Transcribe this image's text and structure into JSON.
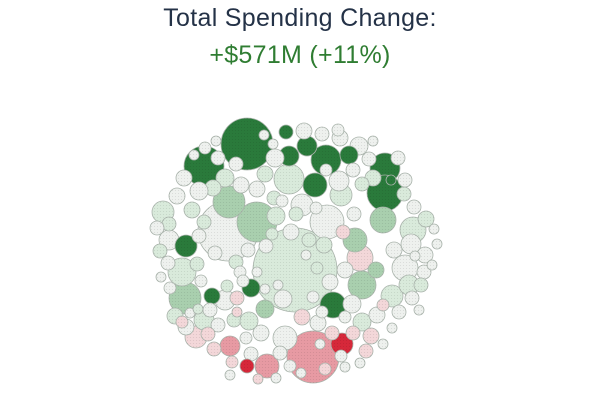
{
  "header": {
    "title": "Total Spending Change:",
    "change": "+$571M (+11%)"
  },
  "chart_data": {
    "type": "bubble-pack",
    "title": "Total Spending Change:",
    "subtitle": "+$571M (+11%)",
    "legend": "none",
    "grid": false,
    "colors": {
      "strong_increase": "#2a7a3b",
      "increase": "#a9cfae",
      "slight_increase": "#d9eadb",
      "neutral": "#eef1ee",
      "slight_decrease": "#f3d7d9",
      "decrease": "#e79aa3",
      "strong_decrease": "#d6283a",
      "outline": "#a9b3ab"
    }
  }
}
